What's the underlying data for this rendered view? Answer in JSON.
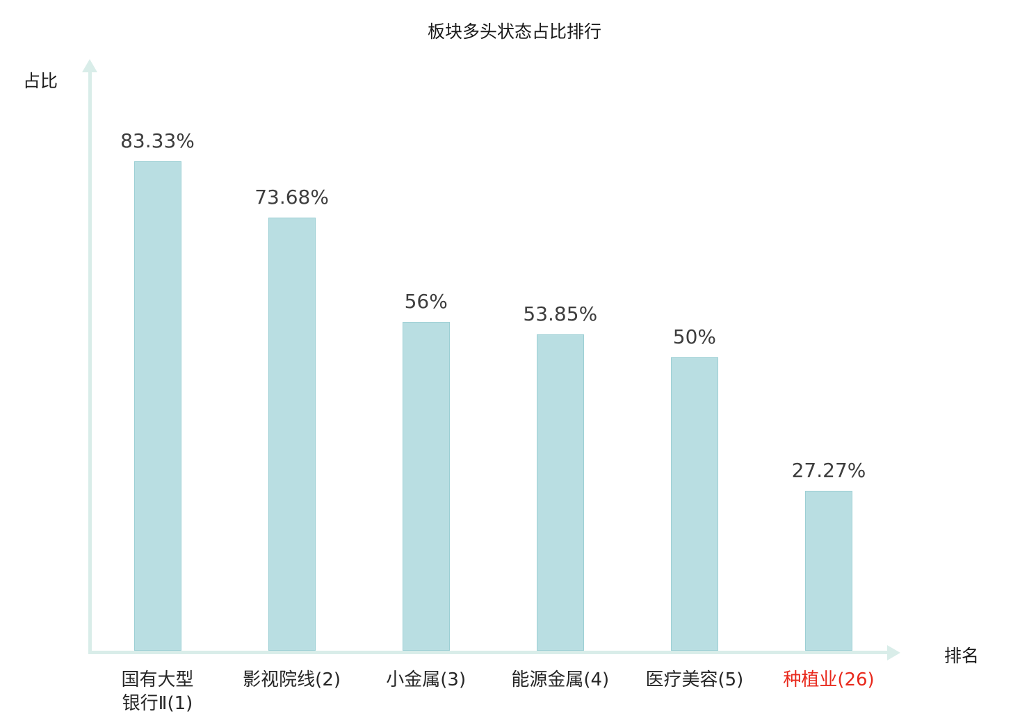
{
  "title": "板块多头状态占比排行",
  "axes": {
    "y_label": "占比",
    "x_label": "排名"
  },
  "colors": {
    "bar_fill": "#b9dee2",
    "bar_border": "#9ccfd4",
    "axis": "#d9ede9",
    "label": "#3d3d3d",
    "highlight": "#e8291c"
  },
  "chart_data": {
    "type": "bar",
    "title": "板块多头状态占比排行",
    "xlabel": "排名",
    "ylabel": "占比",
    "ylim": [
      0,
      100
    ],
    "categories": [
      "国有大型\n银行Ⅱ(1)",
      "影视院线(2)",
      "小金属(3)",
      "能源金属(4)",
      "医疗美容(5)",
      "种植业(26)"
    ],
    "values": [
      83.33,
      73.68,
      56,
      53.85,
      50,
      27.27
    ],
    "value_labels": [
      "83.33%",
      "73.68%",
      "56%",
      "53.85%",
      "50%",
      "27.27%"
    ],
    "highlight_index": 5,
    "grid": false,
    "legend": "none"
  }
}
